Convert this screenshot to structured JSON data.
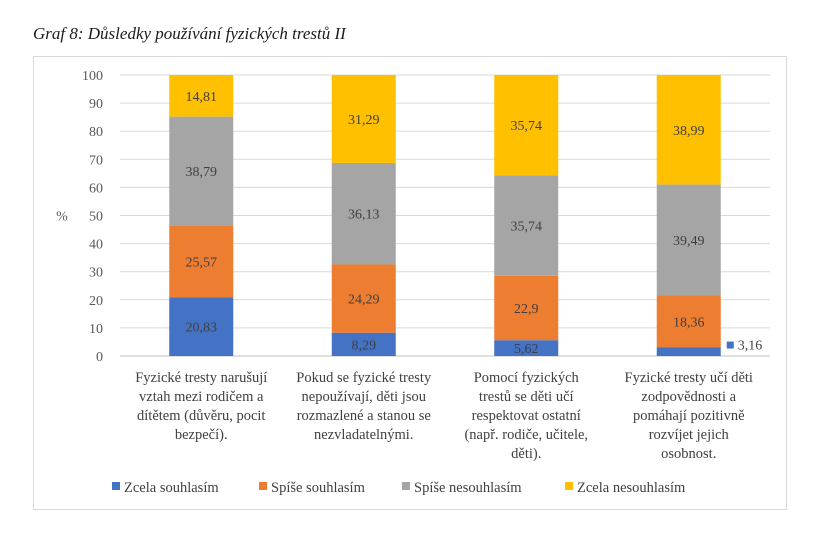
{
  "caption": "Graf 8: Důsledky používání fyzických trestů II",
  "chart_data": {
    "type": "bar",
    "stacked": true,
    "ylabel": "%",
    "ylim": [
      0,
      100
    ],
    "yticks": [
      0,
      10,
      20,
      30,
      40,
      50,
      60,
      70,
      80,
      90,
      100
    ],
    "grid": true,
    "legend_position": "bottom",
    "categories": [
      [
        "Fyzické tresty narušují",
        "vztah mezi rodičem a",
        "dítětem (důvěru, pocit",
        "bezpečí)."
      ],
      [
        "Pokud se fyzické tresty",
        "nepoužívají, děti jsou",
        "rozmazlené a stanou se",
        "nezvladatelnými."
      ],
      [
        "Pomocí fyzických",
        "trestů se děti učí",
        "respektovat ostatní",
        "(např. rodiče, učitele,",
        "děti)."
      ],
      [
        "Fyzické tresty učí děti",
        "zodpovědnosti a",
        "pomáhají pozitivně",
        "rozvíjet jejich",
        "osobnost."
      ]
    ],
    "series": [
      {
        "name": "Zcela souhlasím",
        "color": "#4472c4",
        "values": [
          20.83,
          8.29,
          5.62,
          3.16
        ],
        "labels": [
          "20,83",
          "8,29",
          "5,62",
          "3,16"
        ]
      },
      {
        "name": "Spíše souhlasím",
        "color": "#ed7d31",
        "values": [
          25.57,
          24.29,
          22.9,
          18.36
        ],
        "labels": [
          "25,57",
          "24,29",
          "22,9",
          "18,36"
        ]
      },
      {
        "name": "Spíše nesouhlasím",
        "color": "#a5a5a5",
        "values": [
          38.79,
          36.13,
          35.74,
          39.49
        ],
        "labels": [
          "38,79",
          "36,13",
          "35,74",
          "39,49"
        ]
      },
      {
        "name": "Zcela nesouhlasím",
        "color": "#ffc000",
        "values": [
          14.81,
          31.29,
          35.74,
          38.99
        ],
        "labels": [
          "14,81",
          "31,29",
          "35,74",
          "38,99"
        ]
      }
    ]
  }
}
